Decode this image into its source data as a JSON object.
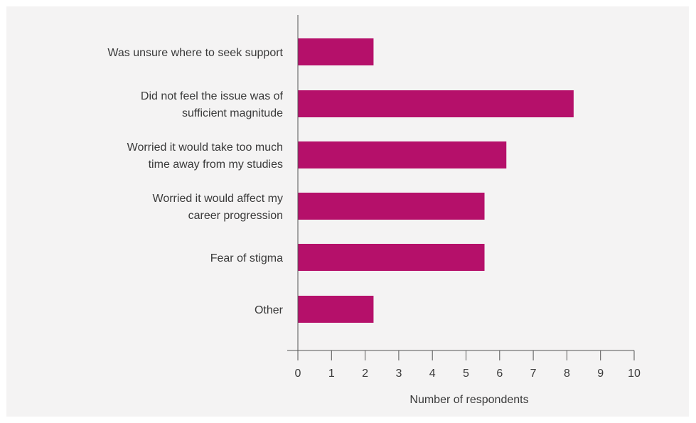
{
  "chart_data": {
    "type": "bar",
    "orientation": "horizontal",
    "categories": [
      [
        "Was unsure where to seek support"
      ],
      [
        "Did not feel the issue was of",
        "sufficient magnitude"
      ],
      [
        "Worried it would take too much",
        "time away from my studies"
      ],
      [
        "Worried it would affect my",
        "career progression"
      ],
      [
        "Fear of stigma"
      ],
      [
        "Other"
      ]
    ],
    "values": [
      2.25,
      8.2,
      6.2,
      5.55,
      5.55,
      2.25
    ],
    "xlabel": "Number of respondents",
    "ylabel": "",
    "xlim": [
      0,
      10
    ],
    "xticks": [
      "0",
      "1",
      "2",
      "3",
      "4",
      "5",
      "6",
      "7",
      "8",
      "9",
      "10"
    ],
    "bar_color": "#b5106a",
    "axis_color": "#555555",
    "background_color": "#f4f3f3",
    "grid": false,
    "legend": "none"
  }
}
